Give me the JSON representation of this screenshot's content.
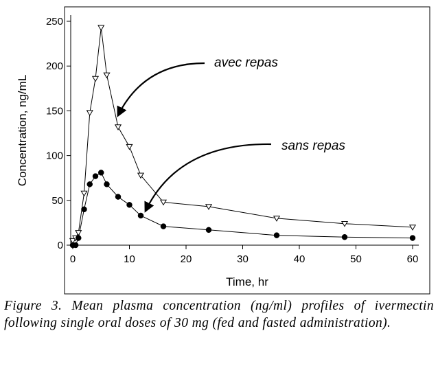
{
  "chart_data": {
    "type": "line",
    "xlabel": "Time, hr",
    "ylabel": "Concentration, ng/mL",
    "xlim": [
      0,
      60
    ],
    "ylim": [
      0,
      250
    ],
    "xticks": [
      0,
      10,
      20,
      30,
      40,
      50,
      60
    ],
    "yticks": [
      0,
      50,
      100,
      150,
      200,
      250
    ],
    "grid": false,
    "series": [
      {
        "name": "avec repas",
        "marker": "open-triangle-down",
        "color": "#000000",
        "x": [
          0,
          0.5,
          1,
          2,
          3,
          4,
          5,
          6,
          8,
          10,
          12,
          16,
          24,
          36,
          48,
          60
        ],
        "y": [
          5,
          8,
          14,
          58,
          148,
          186,
          243,
          190,
          132,
          110,
          78,
          48,
          43,
          30,
          24,
          20
        ]
      },
      {
        "name": "sans repas",
        "marker": "filled-circle",
        "color": "#000000",
        "x": [
          0,
          0.5,
          1,
          2,
          3,
          4,
          5,
          6,
          8,
          10,
          12,
          16,
          24,
          36,
          48,
          60
        ],
        "y": [
          0,
          0,
          8,
          40,
          68,
          77,
          81,
          68,
          54,
          45,
          33,
          21,
          17,
          11,
          9,
          8
        ]
      }
    ],
    "annotations": [
      {
        "text": "avec repas",
        "target_series": 0
      },
      {
        "text": "sans repas",
        "target_series": 1
      }
    ]
  },
  "caption": {
    "label": "Figure 3.",
    "text": "Mean plasma concentration (ng/ml) profiles of ivermectin following single oral doses of 30 mg (fed and fasted administration)."
  }
}
